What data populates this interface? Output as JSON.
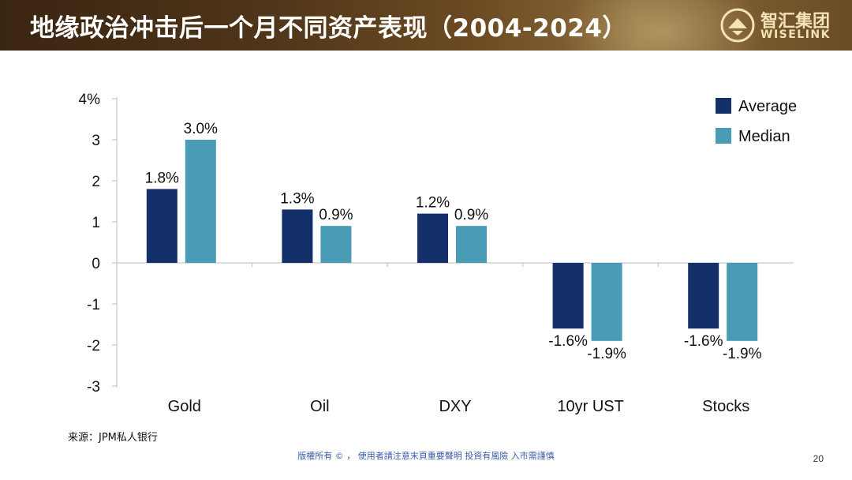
{
  "header": {
    "title": "地缘政治冲击后一个月不同资产表现（2004-2024）",
    "logo_cn": "智汇集团",
    "logo_en": "WISELINK"
  },
  "chart_data": {
    "type": "bar",
    "title": "地缘政治冲击后一个月不同资产表现（2004-2024）",
    "categories": [
      "Gold",
      "Oil",
      "DXY",
      "10yr UST",
      "Stocks"
    ],
    "series": [
      {
        "name": "Average",
        "color": "#14306b",
        "values": [
          1.8,
          1.3,
          1.2,
          -1.6,
          -1.6
        ],
        "labels": [
          "1.8%",
          "1.3%",
          "1.2%",
          "-1.6%",
          "-1.6%"
        ]
      },
      {
        "name": "Median",
        "color": "#4a9bb5",
        "values": [
          3.0,
          0.9,
          0.9,
          -1.9,
          -1.9
        ],
        "labels": [
          "3.0%",
          "0.9%",
          "0.9%",
          "-1.9%",
          "-1.9%"
        ]
      }
    ],
    "y_ticks": [
      {
        "value": 4,
        "label": "4%"
      },
      {
        "value": 3,
        "label": "3"
      },
      {
        "value": 2,
        "label": "2"
      },
      {
        "value": 1,
        "label": "1"
      },
      {
        "value": 0,
        "label": "0"
      },
      {
        "value": -1,
        "label": "-1"
      },
      {
        "value": -2,
        "label": "-2"
      },
      {
        "value": -3,
        "label": "-3"
      }
    ],
    "ylim": [
      -3,
      4
    ],
    "xlabel": "",
    "ylabel": "",
    "legend_position": "top-right"
  },
  "footer": {
    "source": "来源：JPM私人银行",
    "disclaimer": "版權所有 © ， 使用者請注意末頁重要聲明  投資有風險 入市需謹慎",
    "page_number": "20"
  }
}
